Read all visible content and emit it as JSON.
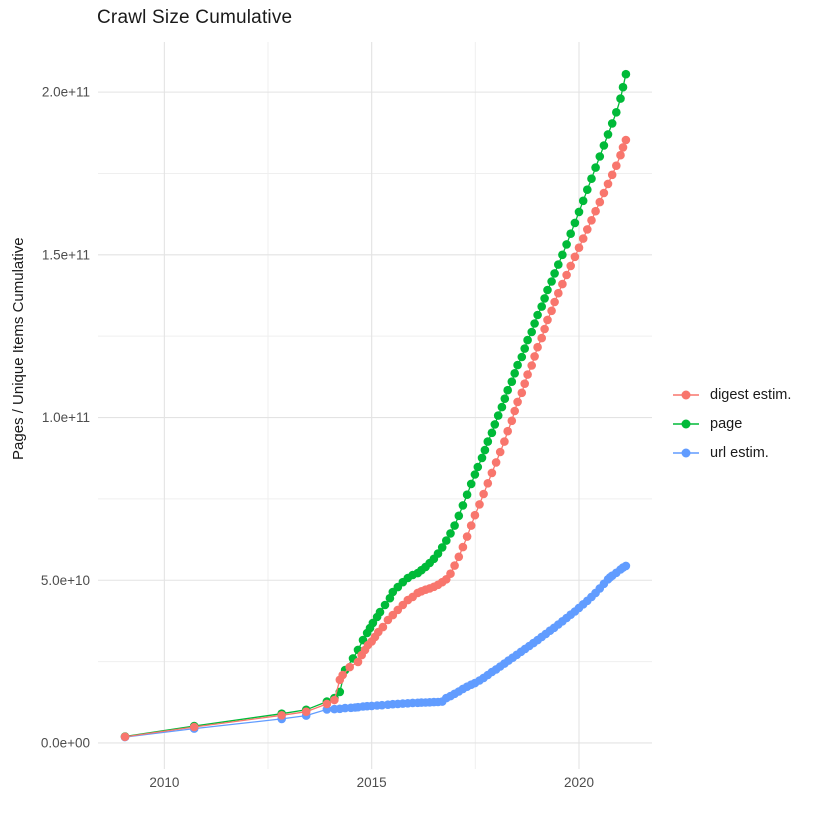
{
  "title": "Crawl Size Cumulative",
  "axes": {
    "y_title": "Pages / Unique Items Cumulative",
    "y_tick_labels": [
      "0.0e+00",
      "5.0e+10",
      "1.0e+11",
      "1.5e+11",
      "2.0e+11"
    ],
    "x_tick_labels": [
      "2010",
      "2015",
      "2020"
    ]
  },
  "legend": {
    "items": [
      {
        "label": "digest estim.",
        "color": "#F8766D"
      },
      {
        "label": "page",
        "color": "#00BA38"
      },
      {
        "label": "url estim.",
        "color": "#619CFF"
      }
    ]
  },
  "colors": {
    "background": "#ffffff",
    "grid_major": "#e3e3e3",
    "grid_minor": "#efefef",
    "tick_text": "#4d4d4d",
    "title_text": "#1a1a1a"
  },
  "chart_data": {
    "type": "line",
    "title": "Crawl Size Cumulative",
    "xlabel": "",
    "ylabel": "Pages / Unique Items Cumulative",
    "y_unit": "pages, value stored in units of 1e9",
    "xlim": [
      2008.4,
      2021.76
    ],
    "ylim_e9": [
      -8,
      215.4
    ],
    "x_major_ticks": [
      2010,
      2015,
      2020
    ],
    "x_minor_ticks": [
      2012.5,
      2017.5
    ],
    "y_major_ticks_e9": [
      0,
      50,
      100,
      150,
      200
    ],
    "y_minor_ticks_e9": [
      25,
      75,
      125,
      175
    ],
    "grid": true,
    "legend_position": "right",
    "series": [
      {
        "name": "page",
        "color": "#00BA38",
        "points": [
          [
            2009.05,
            2.0
          ],
          [
            2010.72,
            5.2
          ],
          [
            2012.83,
            9.0
          ],
          [
            2013.42,
            10.2
          ],
          [
            2013.92,
            12.7
          ],
          [
            2014.1,
            13.8
          ],
          [
            2014.23,
            15.7
          ],
          [
            2014.36,
            22.4
          ],
          [
            2014.55,
            26.0
          ],
          [
            2014.67,
            28.6
          ],
          [
            2014.79,
            31.6
          ],
          [
            2014.89,
            33.8
          ],
          [
            2014.96,
            35.3
          ],
          [
            2015.03,
            36.9
          ],
          [
            2015.13,
            38.7
          ],
          [
            2015.2,
            40.2
          ],
          [
            2015.32,
            42.4
          ],
          [
            2015.44,
            44.5
          ],
          [
            2015.51,
            46.4
          ],
          [
            2015.63,
            47.9
          ],
          [
            2015.75,
            49.4
          ],
          [
            2015.87,
            50.7
          ],
          [
            2015.99,
            51.6
          ],
          [
            2016.11,
            52.2
          ],
          [
            2016.2,
            53.1
          ],
          [
            2016.3,
            54.1
          ],
          [
            2016.4,
            55.3
          ],
          [
            2016.5,
            56.6
          ],
          [
            2016.6,
            58.2
          ],
          [
            2016.7,
            60.1
          ],
          [
            2016.8,
            62.2
          ],
          [
            2016.9,
            64.4
          ],
          [
            2017.0,
            66.8
          ],
          [
            2017.1,
            69.8
          ],
          [
            2017.2,
            73.0
          ],
          [
            2017.3,
            76.3
          ],
          [
            2017.4,
            79.6
          ],
          [
            2017.49,
            82.5
          ],
          [
            2017.56,
            84.8
          ],
          [
            2017.66,
            87.6
          ],
          [
            2017.73,
            90.0
          ],
          [
            2017.8,
            92.6
          ],
          [
            2017.9,
            95.3
          ],
          [
            2017.97,
            97.9
          ],
          [
            2018.05,
            100.6
          ],
          [
            2018.14,
            103.2
          ],
          [
            2018.21,
            105.8
          ],
          [
            2018.28,
            108.4
          ],
          [
            2018.38,
            111.0
          ],
          [
            2018.45,
            113.6
          ],
          [
            2018.52,
            116.1
          ],
          [
            2018.62,
            118.6
          ],
          [
            2018.69,
            121.2
          ],
          [
            2018.76,
            123.8
          ],
          [
            2018.86,
            126.3
          ],
          [
            2018.93,
            128.9
          ],
          [
            2019.0,
            131.5
          ],
          [
            2019.1,
            134.1
          ],
          [
            2019.17,
            136.6
          ],
          [
            2019.24,
            139.2
          ],
          [
            2019.34,
            141.8
          ],
          [
            2019.41,
            144.3
          ],
          [
            2019.5,
            147.0
          ],
          [
            2019.6,
            150.0
          ],
          [
            2019.7,
            153.2
          ],
          [
            2019.8,
            156.5
          ],
          [
            2019.9,
            159.8
          ],
          [
            2020.0,
            163.2
          ],
          [
            2020.1,
            166.6
          ],
          [
            2020.2,
            170.0
          ],
          [
            2020.3,
            173.4
          ],
          [
            2020.4,
            176.8
          ],
          [
            2020.5,
            180.2
          ],
          [
            2020.6,
            183.6
          ],
          [
            2020.7,
            187.0
          ],
          [
            2020.8,
            190.4
          ],
          [
            2020.9,
            193.8
          ],
          [
            2021.0,
            198.0
          ],
          [
            2021.06,
            201.5
          ],
          [
            2021.13,
            205.5
          ]
        ]
      },
      {
        "name": "url estim.",
        "color": "#619CFF",
        "points": [
          [
            2009.05,
            1.8
          ],
          [
            2010.72,
            4.4
          ],
          [
            2012.83,
            7.4
          ],
          [
            2013.42,
            8.4
          ],
          [
            2013.92,
            10.3
          ],
          [
            2014.1,
            10.4
          ],
          [
            2014.23,
            10.5
          ],
          [
            2014.36,
            10.7
          ],
          [
            2014.5,
            10.8
          ],
          [
            2014.6,
            10.9
          ],
          [
            2014.67,
            11.0
          ],
          [
            2014.79,
            11.2
          ],
          [
            2014.89,
            11.3
          ],
          [
            2015.0,
            11.4
          ],
          [
            2015.13,
            11.5
          ],
          [
            2015.25,
            11.6
          ],
          [
            2015.39,
            11.75
          ],
          [
            2015.51,
            11.9
          ],
          [
            2015.63,
            12.0
          ],
          [
            2015.75,
            12.1
          ],
          [
            2015.87,
            12.2
          ],
          [
            2015.99,
            12.3
          ],
          [
            2016.11,
            12.35
          ],
          [
            2016.2,
            12.4
          ],
          [
            2016.3,
            12.45
          ],
          [
            2016.4,
            12.5
          ],
          [
            2016.5,
            12.55
          ],
          [
            2016.6,
            12.6
          ],
          [
            2016.7,
            12.7
          ],
          [
            2016.8,
            13.8
          ],
          [
            2016.9,
            14.4
          ],
          [
            2017.0,
            15.1
          ],
          [
            2017.1,
            15.8
          ],
          [
            2017.2,
            16.6
          ],
          [
            2017.3,
            17.3
          ],
          [
            2017.4,
            17.9
          ],
          [
            2017.49,
            18.4
          ],
          [
            2017.6,
            19.2
          ],
          [
            2017.7,
            20.0
          ],
          [
            2017.8,
            20.9
          ],
          [
            2017.9,
            21.8
          ],
          [
            2018.0,
            22.6
          ],
          [
            2018.1,
            23.5
          ],
          [
            2018.2,
            24.4
          ],
          [
            2018.3,
            25.3
          ],
          [
            2018.4,
            26.2
          ],
          [
            2018.5,
            27.1
          ],
          [
            2018.6,
            28.0
          ],
          [
            2018.7,
            28.9
          ],
          [
            2018.8,
            29.8
          ],
          [
            2018.9,
            30.7
          ],
          [
            2019.0,
            31.6
          ],
          [
            2019.1,
            32.6
          ],
          [
            2019.2,
            33.5
          ],
          [
            2019.3,
            34.5
          ],
          [
            2019.4,
            35.4
          ],
          [
            2019.5,
            36.4
          ],
          [
            2019.6,
            37.4
          ],
          [
            2019.7,
            38.4
          ],
          [
            2019.8,
            39.4
          ],
          [
            2019.9,
            40.4
          ],
          [
            2020.0,
            41.5
          ],
          [
            2020.1,
            42.6
          ],
          [
            2020.2,
            43.7
          ],
          [
            2020.3,
            44.9
          ],
          [
            2020.4,
            46.1
          ],
          [
            2020.5,
            47.5
          ],
          [
            2020.6,
            48.9
          ],
          [
            2020.7,
            50.3
          ],
          [
            2020.75,
            50.9
          ],
          [
            2020.8,
            51.4
          ],
          [
            2020.9,
            52.3
          ],
          [
            2021.0,
            53.3
          ],
          [
            2021.06,
            53.9
          ],
          [
            2021.13,
            54.4
          ]
        ]
      },
      {
        "name": "digest estim.",
        "color": "#F8766D",
        "points": [
          [
            2009.05,
            1.9
          ],
          [
            2010.72,
            4.9
          ],
          [
            2012.83,
            8.5
          ],
          [
            2013.42,
            9.6
          ],
          [
            2013.92,
            12.0
          ],
          [
            2014.1,
            13.2
          ],
          [
            2014.23,
            19.4
          ],
          [
            2014.3,
            20.9
          ],
          [
            2014.47,
            23.3
          ],
          [
            2014.67,
            24.9
          ],
          [
            2014.76,
            27.0
          ],
          [
            2014.84,
            28.6
          ],
          [
            2014.91,
            30.1
          ],
          [
            2015.0,
            31.2
          ],
          [
            2015.08,
            32.6
          ],
          [
            2015.16,
            34.1
          ],
          [
            2015.27,
            35.6
          ],
          [
            2015.39,
            37.8
          ],
          [
            2015.51,
            39.3
          ],
          [
            2015.63,
            40.9
          ],
          [
            2015.75,
            42.4
          ],
          [
            2015.87,
            43.9
          ],
          [
            2015.99,
            44.9
          ],
          [
            2016.11,
            46.1
          ],
          [
            2016.2,
            46.6
          ],
          [
            2016.3,
            47.1
          ],
          [
            2016.4,
            47.5
          ],
          [
            2016.5,
            48.0
          ],
          [
            2016.6,
            48.6
          ],
          [
            2016.7,
            49.4
          ],
          [
            2016.8,
            50.3
          ],
          [
            2016.9,
            52.0
          ],
          [
            2017.0,
            54.5
          ],
          [
            2017.1,
            57.2
          ],
          [
            2017.2,
            60.2
          ],
          [
            2017.3,
            63.4
          ],
          [
            2017.4,
            66.8
          ],
          [
            2017.49,
            70.0
          ],
          [
            2017.6,
            73.3
          ],
          [
            2017.7,
            76.5
          ],
          [
            2017.8,
            79.8
          ],
          [
            2017.9,
            83.0
          ],
          [
            2018.0,
            86.2
          ],
          [
            2018.1,
            89.4
          ],
          [
            2018.2,
            92.6
          ],
          [
            2018.28,
            95.8
          ],
          [
            2018.38,
            99.0
          ],
          [
            2018.45,
            102.0
          ],
          [
            2018.52,
            104.8
          ],
          [
            2018.62,
            107.6
          ],
          [
            2018.69,
            110.4
          ],
          [
            2018.76,
            113.2
          ],
          [
            2018.86,
            116.0
          ],
          [
            2018.93,
            118.8
          ],
          [
            2019.0,
            121.6
          ],
          [
            2019.1,
            124.4
          ],
          [
            2019.17,
            127.2
          ],
          [
            2019.24,
            130.0
          ],
          [
            2019.34,
            132.8
          ],
          [
            2019.41,
            135.5
          ],
          [
            2019.5,
            138.2
          ],
          [
            2019.6,
            141.0
          ],
          [
            2019.7,
            143.8
          ],
          [
            2019.8,
            146.6
          ],
          [
            2019.9,
            149.4
          ],
          [
            2020.0,
            152.2
          ],
          [
            2020.1,
            155.0
          ],
          [
            2020.2,
            157.8
          ],
          [
            2020.3,
            160.6
          ],
          [
            2020.4,
            163.4
          ],
          [
            2020.5,
            166.2
          ],
          [
            2020.6,
            169.0
          ],
          [
            2020.7,
            171.8
          ],
          [
            2020.8,
            174.6
          ],
          [
            2020.9,
            177.4
          ],
          [
            2021.0,
            180.6
          ],
          [
            2021.06,
            183.0
          ],
          [
            2021.13,
            185.3
          ]
        ]
      }
    ]
  }
}
